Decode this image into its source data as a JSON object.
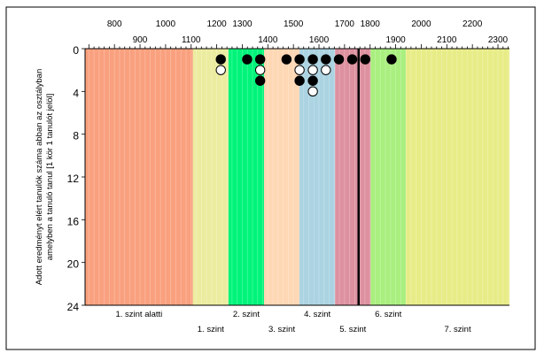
{
  "chart_data": {
    "type": "scatter",
    "title": "",
    "ylabel_lines": [
      "Adott eredményt elért tanulók száma abban az osztályban",
      "amelyben a tanuló tanul [1 kör 1 tanulót jelöl]"
    ],
    "xlim": [
      685,
      2345
    ],
    "ylim": [
      0,
      24
    ],
    "x_ticks_top": [
      800,
      1000,
      1200,
      1300,
      1500,
      1700,
      1800
    ],
    "x_ticks_top_right": [
      2000,
      2200
    ],
    "x_ticks_bottom": [
      900,
      1100,
      1400,
      1600,
      1900,
      2100,
      2300
    ],
    "y_ticks": [
      0,
      4,
      8,
      12,
      16,
      20,
      24
    ],
    "bands": [
      {
        "name": "1. szint alatti",
        "from": 685,
        "to": 1107,
        "color": "#f9a07e",
        "label_row": 1
      },
      {
        "name": "1. szint",
        "from": 1107,
        "to": 1246,
        "color": "#ececa0",
        "label_row": 2
      },
      {
        "name": "2. szint",
        "from": 1246,
        "to": 1385,
        "color": "#00f47a",
        "label_row": 1
      },
      {
        "name": "3. szint",
        "from": 1385,
        "to": 1524,
        "color": "#fed7b4",
        "label_row": 2
      },
      {
        "name": "4. szint",
        "from": 1524,
        "to": 1663,
        "color": "#abd3e1",
        "label_row": 1
      },
      {
        "name": "5. szint",
        "from": 1663,
        "to": 1802,
        "color": "#dd919f",
        "label_row": 2
      },
      {
        "name": "6. szint",
        "from": 1802,
        "to": 1940,
        "color": "#a9ef7f",
        "label_row": 1
      },
      {
        "name": "7. szint",
        "from": 1940,
        "to": 2345,
        "color": "#e8ec87",
        "label_row": 2
      }
    ],
    "reference_line_x": 1755,
    "points": [
      {
        "x": 1216,
        "y": 1,
        "filled": true
      },
      {
        "x": 1216,
        "y": 2,
        "filled": false
      },
      {
        "x": 1319,
        "y": 1,
        "filled": true
      },
      {
        "x": 1370,
        "y": 1,
        "filled": true
      },
      {
        "x": 1370,
        "y": 2,
        "filled": false
      },
      {
        "x": 1370,
        "y": 3,
        "filled": true
      },
      {
        "x": 1473,
        "y": 1,
        "filled": true
      },
      {
        "x": 1524,
        "y": 1,
        "filled": true
      },
      {
        "x": 1524,
        "y": 2,
        "filled": false
      },
      {
        "x": 1524,
        "y": 3,
        "filled": true
      },
      {
        "x": 1576,
        "y": 1,
        "filled": true
      },
      {
        "x": 1576,
        "y": 2,
        "filled": false
      },
      {
        "x": 1576,
        "y": 3,
        "filled": true
      },
      {
        "x": 1576,
        "y": 4,
        "filled": false
      },
      {
        "x": 1627,
        "y": 1,
        "filled": true
      },
      {
        "x": 1627,
        "y": 2,
        "filled": false
      },
      {
        "x": 1678,
        "y": 1,
        "filled": true
      },
      {
        "x": 1730,
        "y": 1,
        "filled": true
      },
      {
        "x": 1781,
        "y": 1,
        "filled": true
      },
      {
        "x": 1884,
        "y": 1,
        "filled": true
      }
    ]
  }
}
